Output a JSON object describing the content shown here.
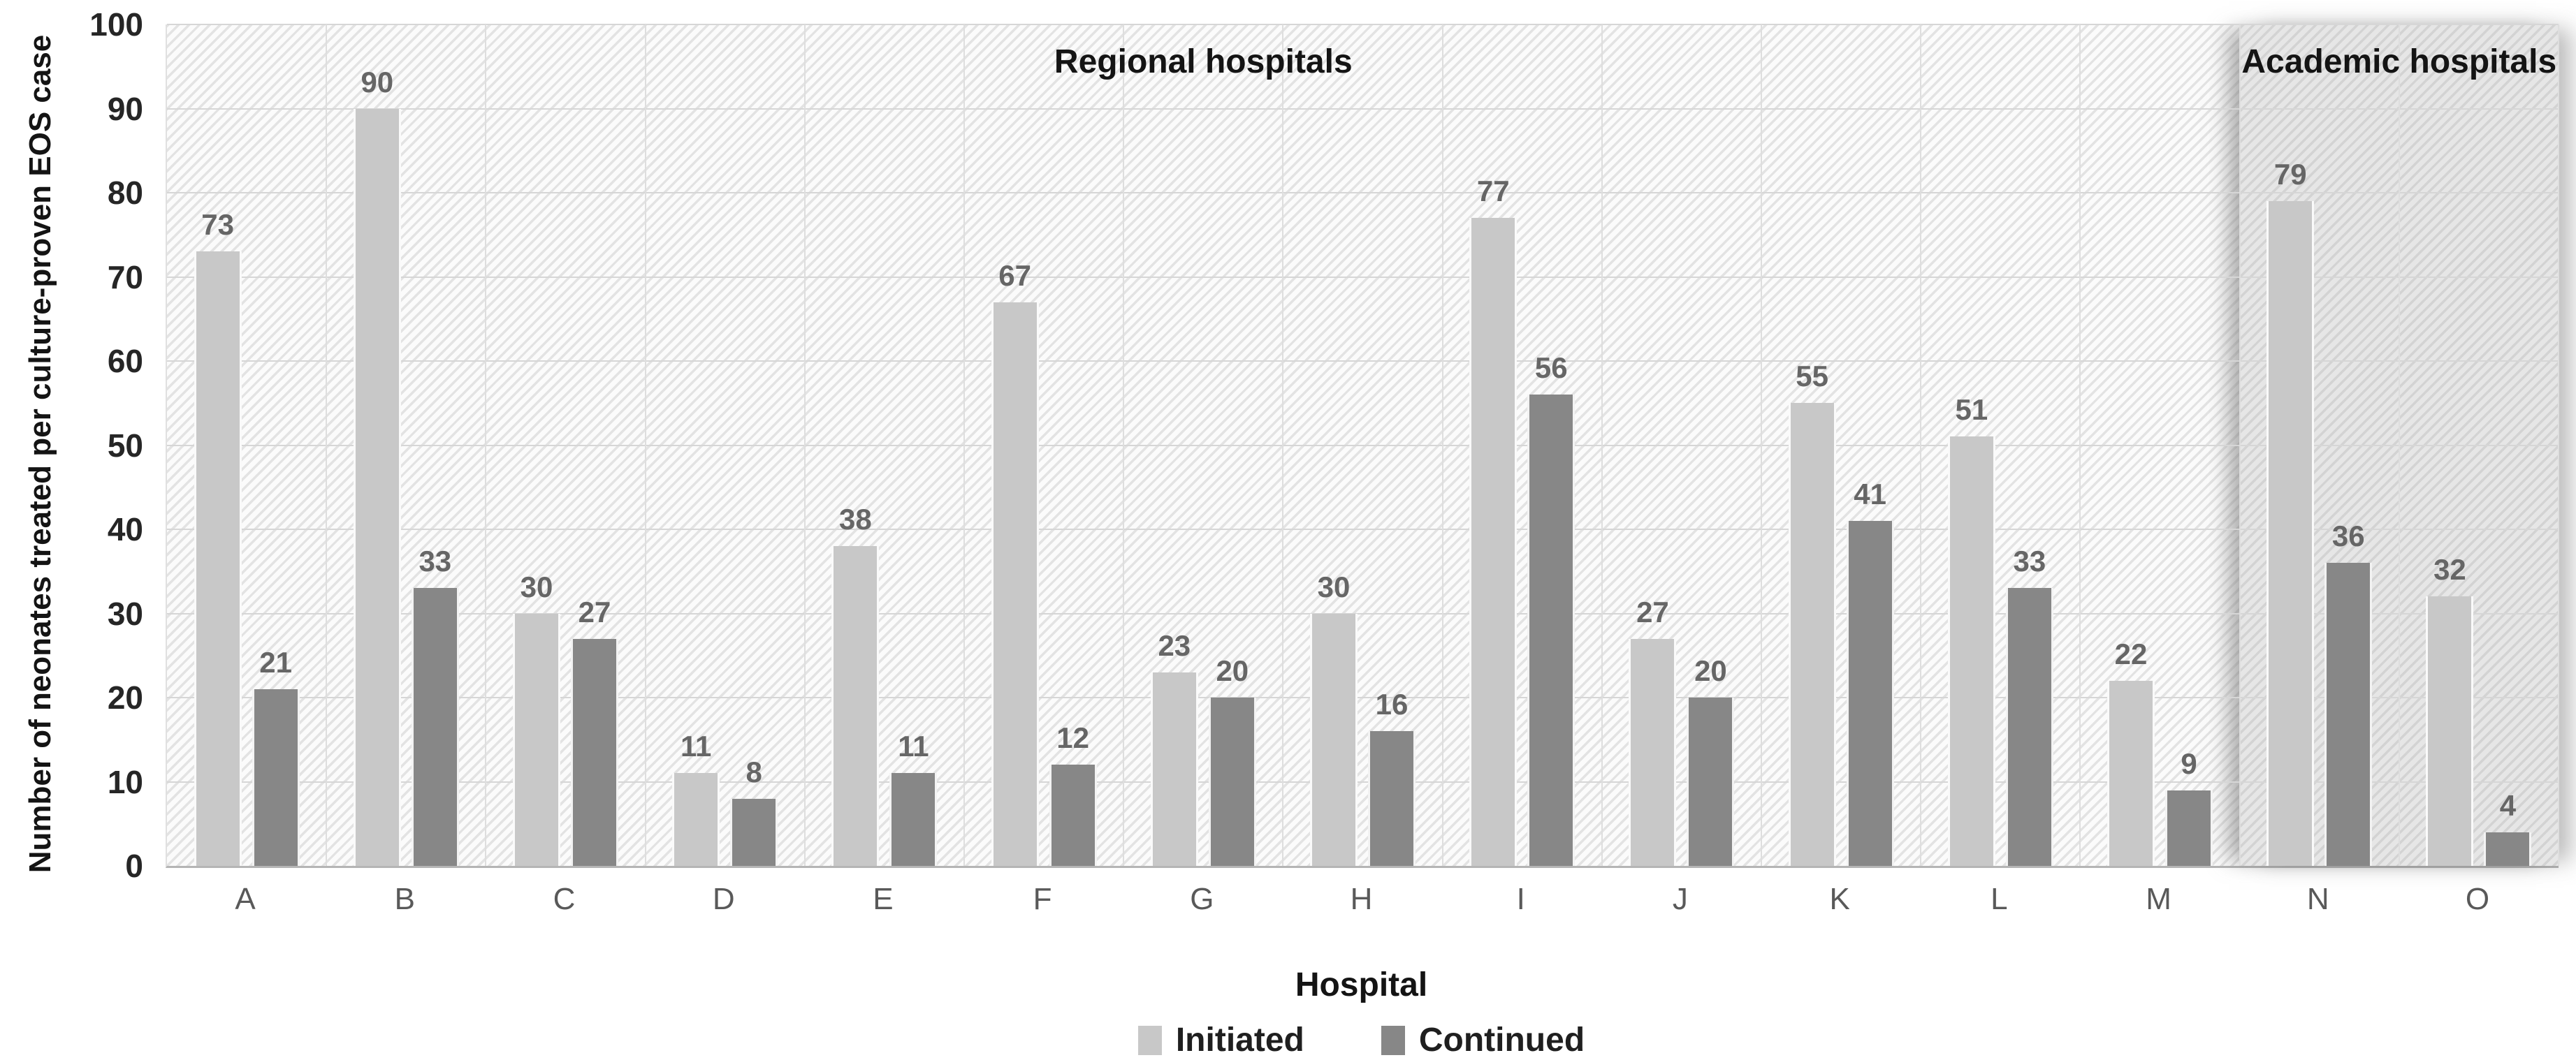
{
  "chart_data": {
    "type": "bar",
    "title": "",
    "categories": [
      "A",
      "B",
      "C",
      "D",
      "E",
      "F",
      "G",
      "H",
      "I",
      "J",
      "K",
      "L",
      "M",
      "N",
      "O"
    ],
    "series": [
      {
        "name": "Initiated",
        "color": "#c8c8c8",
        "values": [
          73,
          90,
          30,
          11,
          38,
          67,
          23,
          30,
          77,
          27,
          55,
          51,
          22,
          79,
          32
        ]
      },
      {
        "name": "Continued",
        "color": "#878787",
        "values": [
          21,
          33,
          27,
          8,
          11,
          12,
          20,
          16,
          56,
          20,
          41,
          33,
          9,
          36,
          4
        ]
      }
    ],
    "xlabel": "Hospital",
    "ylabel": "Number of neonates treated per culture-proven EOS case",
    "ylim": [
      0,
      100
    ],
    "ytick_step": 10,
    "y_ticks": [
      0,
      10,
      20,
      30,
      40,
      50,
      60,
      70,
      80,
      90,
      100
    ],
    "grid": true,
    "legend_position": "bottom",
    "annotations": [
      {
        "label": "Regional hospitals",
        "span_categories": [
          "A",
          "M"
        ],
        "shaded": false
      },
      {
        "label": "Academic hospitals",
        "span_categories": [
          "N",
          "O"
        ],
        "shaded": true
      }
    ]
  },
  "colors": {
    "initiated_bar": "#c8c8c8",
    "continued_bar": "#878787",
    "academic_region_tint": "rgba(138,138,138,0.18)",
    "gridline": "#d6d6d6",
    "hatch_stripe": "#e3e3e3",
    "data_label_text": "#666666",
    "axis_tick_text": "#262626"
  }
}
